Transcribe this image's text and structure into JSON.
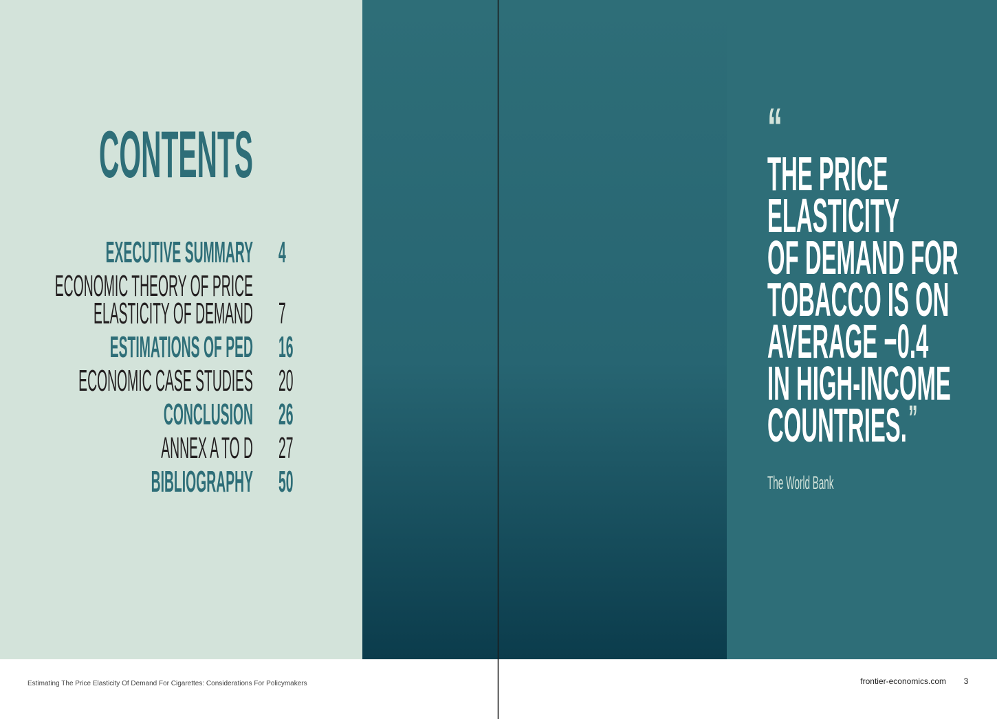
{
  "contents": {
    "title": "CONTENTS",
    "entries": [
      {
        "lines": [
          "EXECUTIVE SUMMARY"
        ],
        "page": 4
      },
      {
        "lines": [
          "ECONOMIC THEORY OF PRICE",
          "ELASTICITY OF DEMAND"
        ],
        "page": 7
      },
      {
        "lines": [
          "ESTIMATIONS OF PED"
        ],
        "page": 16
      },
      {
        "lines": [
          "ECONOMIC CASE STUDIES"
        ],
        "page": 20
      },
      {
        "lines": [
          "CONCLUSION"
        ],
        "page": 26
      },
      {
        "lines": [
          "ANNEX A TO D"
        ],
        "page": 27
      },
      {
        "lines": [
          "BIBLIOGRAPHY"
        ],
        "page": 50
      }
    ]
  },
  "quote": {
    "open_mark": "“",
    "lines": [
      "THE PRICE",
      "ELASTICITY",
      "OF DEMAND FOR",
      "TOBACCO IS ON",
      "AVERAGE −0.4",
      "IN HIGH-INCOME",
      "COUNTRIES."
    ],
    "close_mark": "”",
    "source": "The World Bank"
  },
  "footer": {
    "document_title": "Estimating The Price Elasticity Of Demand For Cigarettes: Considerations For Policymakers",
    "website": "frontier-economics.com",
    "page_number": 3
  }
}
